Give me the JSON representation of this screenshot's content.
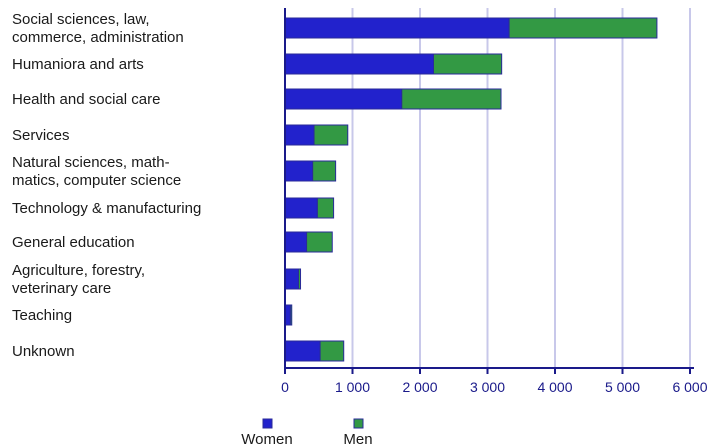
{
  "chart_data": {
    "type": "bar",
    "orientation": "horizontal",
    "stacked": true,
    "categories": [
      [
        "Social sciences, law,",
        "commerce, administration"
      ],
      [
        "Humaniora and arts"
      ],
      [
        "Health and social care"
      ],
      [
        "Services"
      ],
      [
        "Natural sciences, math-",
        "matics, computer science"
      ],
      [
        "Technology & manufacturing"
      ],
      [
        "General education"
      ],
      [
        "Agriculture, forestry,",
        "veterinary care"
      ],
      [
        "Teaching"
      ],
      [
        "Unknown"
      ]
    ],
    "series": [
      {
        "name": "Women",
        "color": "#2222cc",
        "values": [
          3320,
          2200,
          1730,
          430,
          410,
          480,
          320,
          200,
          80,
          520
        ]
      },
      {
        "name": "Men",
        "color": "#339944",
        "values": [
          2190,
          1010,
          1470,
          500,
          340,
          240,
          380,
          30,
          20,
          350
        ]
      }
    ],
    "xlim": [
      0,
      6000
    ],
    "xticks": [
      0,
      1000,
      2000,
      3000,
      4000,
      5000,
      6000
    ],
    "xtick_labels": [
      "0",
      "1 000",
      "2 000",
      "3 000",
      "4 000",
      "5 000",
      "6 000"
    ],
    "grid": "vertical",
    "grid_color": "#c8c8ea",
    "axis_color": "#1a1a8a",
    "legend_placement": "bottom-left",
    "title": "",
    "xlabel": "",
    "ylabel": ""
  }
}
